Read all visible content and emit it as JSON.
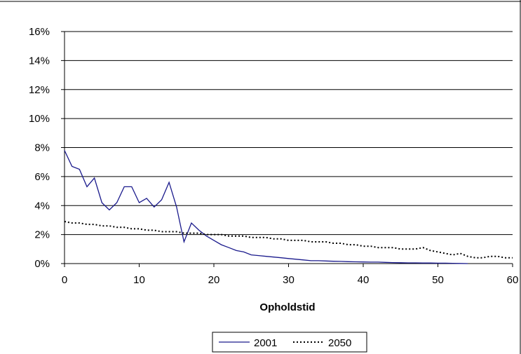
{
  "chart_data": {
    "type": "line",
    "title": "",
    "xlabel": "Opholdstid",
    "ylabel": "",
    "xlim": [
      0,
      60
    ],
    "ylim": [
      0,
      0.16
    ],
    "x_ticks": [
      0,
      10,
      20,
      30,
      40,
      50,
      60
    ],
    "x_tick_labels": [
      "0",
      "10",
      "20",
      "30",
      "40",
      "50",
      "60"
    ],
    "y_ticks": [
      0,
      0.02,
      0.04,
      0.06,
      0.08,
      0.1,
      0.12,
      0.14,
      0.16
    ],
    "y_tick_labels": [
      "0%",
      "2%",
      "4%",
      "6%",
      "8%",
      "10%",
      "12%",
      "14%",
      "16%"
    ],
    "grid": "horizontal",
    "legend_position": "bottom",
    "series": [
      {
        "name": "2001",
        "color": "#1a1a8c",
        "style": "solid",
        "x": [
          0,
          1,
          2,
          3,
          4,
          5,
          6,
          7,
          8,
          9,
          10,
          11,
          12,
          13,
          14,
          15,
          16,
          17,
          18,
          19,
          20,
          21,
          22,
          23,
          24,
          25,
          26,
          27,
          28,
          29,
          30,
          31,
          32,
          33,
          34,
          35,
          36,
          37,
          38,
          39,
          40,
          41,
          42,
          43,
          44,
          45,
          46,
          47,
          48,
          49,
          50,
          51,
          52,
          53,
          54
        ],
        "values": [
          0.078,
          0.067,
          0.065,
          0.053,
          0.059,
          0.042,
          0.037,
          0.042,
          0.053,
          0.053,
          0.042,
          0.045,
          0.039,
          0.044,
          0.056,
          0.039,
          0.015,
          0.028,
          0.023,
          0.019,
          0.016,
          0.013,
          0.011,
          0.009,
          0.008,
          0.006,
          0.0055,
          0.005,
          0.0045,
          0.004,
          0.0035,
          0.003,
          0.0025,
          0.002,
          0.002,
          0.0018,
          0.0016,
          0.0015,
          0.0013,
          0.0012,
          0.0011,
          0.001,
          0.001,
          0.0008,
          0.0007,
          0.0006,
          0.0005,
          0.0005,
          0.0004,
          0.0004,
          0.0003,
          0.0003,
          0.0002,
          0.0001,
          0.0
        ]
      },
      {
        "name": "2050",
        "color": "#000000",
        "style": "dotted",
        "x": [
          0,
          1,
          2,
          3,
          4,
          5,
          6,
          7,
          8,
          9,
          10,
          11,
          12,
          13,
          14,
          15,
          16,
          17,
          18,
          19,
          20,
          21,
          22,
          23,
          24,
          25,
          26,
          27,
          28,
          29,
          30,
          31,
          32,
          33,
          34,
          35,
          36,
          37,
          38,
          39,
          40,
          41,
          42,
          43,
          44,
          45,
          46,
          47,
          48,
          49,
          50,
          51,
          52,
          53,
          54,
          55,
          56,
          57,
          58,
          59,
          60
        ],
        "values": [
          0.029,
          0.028,
          0.028,
          0.027,
          0.027,
          0.026,
          0.026,
          0.025,
          0.025,
          0.024,
          0.024,
          0.023,
          0.023,
          0.022,
          0.022,
          0.022,
          0.021,
          0.021,
          0.021,
          0.02,
          0.02,
          0.02,
          0.019,
          0.019,
          0.019,
          0.018,
          0.018,
          0.018,
          0.017,
          0.017,
          0.016,
          0.016,
          0.016,
          0.015,
          0.015,
          0.015,
          0.014,
          0.014,
          0.013,
          0.013,
          0.012,
          0.012,
          0.011,
          0.011,
          0.011,
          0.01,
          0.01,
          0.01,
          0.011,
          0.009,
          0.008,
          0.007,
          0.006,
          0.007,
          0.005,
          0.004,
          0.004,
          0.005,
          0.005,
          0.004,
          0.004
        ]
      }
    ]
  }
}
